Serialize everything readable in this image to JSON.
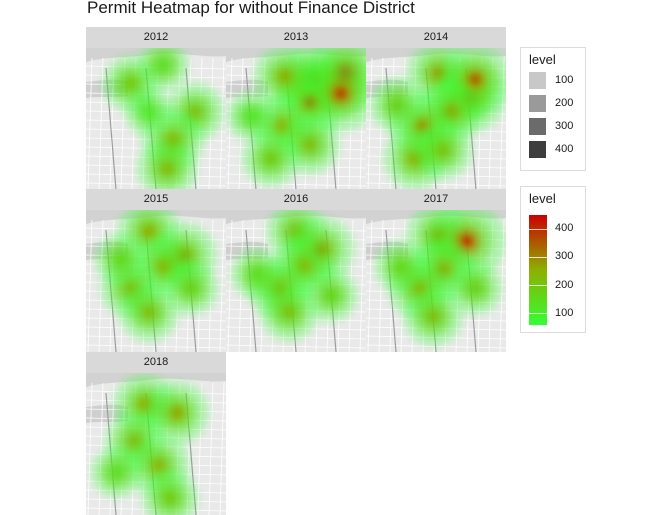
{
  "chart_data": {
    "type": "heatmap",
    "title": "Permit Heatmap for without Finance District",
    "facets": [
      {
        "year": "2012",
        "hotspots": [
          {
            "x": 0.32,
            "y": 0.25,
            "level": 200
          },
          {
            "x": 0.55,
            "y": 0.12,
            "level": 150
          },
          {
            "x": 0.78,
            "y": 0.45,
            "level": 220
          },
          {
            "x": 0.62,
            "y": 0.65,
            "level": 260
          },
          {
            "x": 0.58,
            "y": 0.85,
            "level": 240
          },
          {
            "x": 0.45,
            "y": 0.45,
            "level": 120
          }
        ]
      },
      {
        "year": "2013",
        "hotspots": [
          {
            "x": 0.62,
            "y": 0.22,
            "level": 330
          },
          {
            "x": 0.6,
            "y": 0.38,
            "level": 350
          },
          {
            "x": 0.42,
            "y": 0.2,
            "level": 260
          },
          {
            "x": 0.85,
            "y": 0.18,
            "level": 420
          },
          {
            "x": 0.82,
            "y": 0.32,
            "level": 400
          },
          {
            "x": 0.4,
            "y": 0.55,
            "level": 250
          },
          {
            "x": 0.6,
            "y": 0.68,
            "level": 230
          },
          {
            "x": 0.32,
            "y": 0.78,
            "level": 200
          },
          {
            "x": 0.18,
            "y": 0.48,
            "level": 130
          }
        ]
      },
      {
        "year": "2014",
        "hotspots": [
          {
            "x": 0.52,
            "y": 0.18,
            "level": 280
          },
          {
            "x": 0.75,
            "y": 0.35,
            "level": 330
          },
          {
            "x": 0.78,
            "y": 0.22,
            "level": 360
          },
          {
            "x": 0.6,
            "y": 0.45,
            "level": 280
          },
          {
            "x": 0.4,
            "y": 0.55,
            "level": 300
          },
          {
            "x": 0.35,
            "y": 0.78,
            "level": 260
          },
          {
            "x": 0.55,
            "y": 0.72,
            "level": 220
          },
          {
            "x": 0.22,
            "y": 0.4,
            "level": 180
          }
        ]
      },
      {
        "year": "2015",
        "hotspots": [
          {
            "x": 0.45,
            "y": 0.15,
            "level": 260
          },
          {
            "x": 0.7,
            "y": 0.32,
            "level": 290
          },
          {
            "x": 0.55,
            "y": 0.4,
            "level": 240
          },
          {
            "x": 0.32,
            "y": 0.55,
            "level": 240
          },
          {
            "x": 0.45,
            "y": 0.72,
            "level": 230
          },
          {
            "x": 0.75,
            "y": 0.55,
            "level": 180
          },
          {
            "x": 0.25,
            "y": 0.35,
            "level": 160
          }
        ]
      },
      {
        "year": "2016",
        "hotspots": [
          {
            "x": 0.5,
            "y": 0.15,
            "level": 230
          },
          {
            "x": 0.68,
            "y": 0.28,
            "level": 300
          },
          {
            "x": 0.55,
            "y": 0.4,
            "level": 250
          },
          {
            "x": 0.38,
            "y": 0.55,
            "level": 260
          },
          {
            "x": 0.45,
            "y": 0.72,
            "level": 220
          },
          {
            "x": 0.75,
            "y": 0.6,
            "level": 170
          },
          {
            "x": 0.22,
            "y": 0.45,
            "level": 150
          }
        ]
      },
      {
        "year": "2017",
        "hotspots": [
          {
            "x": 0.52,
            "y": 0.18,
            "level": 280
          },
          {
            "x": 0.72,
            "y": 0.22,
            "level": 420
          },
          {
            "x": 0.55,
            "y": 0.42,
            "level": 270
          },
          {
            "x": 0.38,
            "y": 0.55,
            "level": 260
          },
          {
            "x": 0.48,
            "y": 0.75,
            "level": 230
          },
          {
            "x": 0.78,
            "y": 0.55,
            "level": 180
          },
          {
            "x": 0.25,
            "y": 0.4,
            "level": 160
          }
        ]
      },
      {
        "year": "2018",
        "hotspots": [
          {
            "x": 0.42,
            "y": 0.22,
            "level": 260
          },
          {
            "x": 0.65,
            "y": 0.28,
            "level": 270
          },
          {
            "x": 0.35,
            "y": 0.48,
            "level": 230
          },
          {
            "x": 0.52,
            "y": 0.65,
            "level": 250
          },
          {
            "x": 0.6,
            "y": 0.88,
            "level": 200
          },
          {
            "x": 0.22,
            "y": 0.7,
            "level": 150
          }
        ]
      }
    ],
    "legend_alpha": {
      "title": "level",
      "values": [
        "100",
        "200",
        "300",
        "400"
      ],
      "shades": [
        "#c8c8c8",
        "#9a9a9a",
        "#6b6b6b",
        "#3d3d3d"
      ]
    },
    "legend_color": {
      "title": "level",
      "ticks": [
        "100",
        "200",
        "300",
        "400"
      ],
      "min": 60,
      "max": 450,
      "low_color": "#33ff33",
      "mid_color": "#8db000",
      "high_color": "#cc0000"
    },
    "legend_placement": "right"
  }
}
